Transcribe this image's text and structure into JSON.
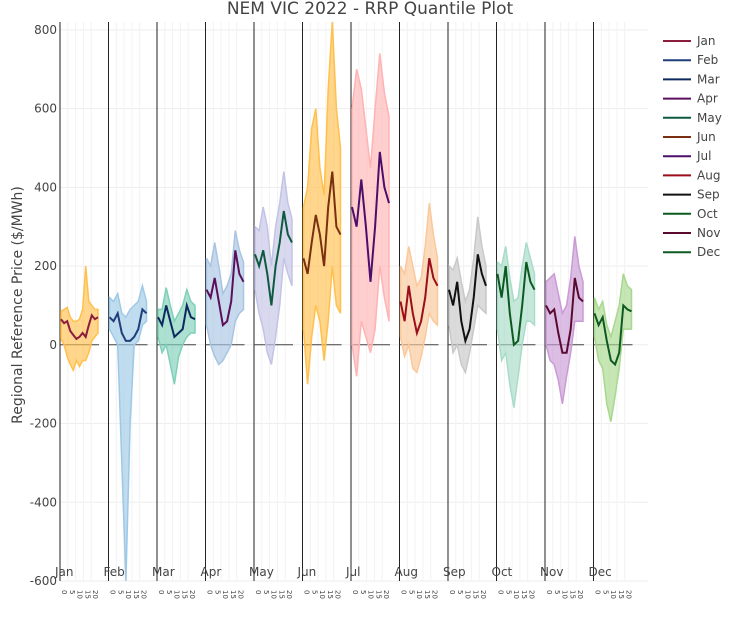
{
  "chart_data": {
    "type": "area",
    "title": "NEM VIC 2022 - RRP Quantile Plot",
    "ylabel": "Regional Reference Price ($/MWh)",
    "ylim": [
      -600,
      820
    ],
    "yticks": [
      -600,
      -400,
      -200,
      0,
      200,
      400,
      600,
      800
    ],
    "hour_ticks": [
      "0",
      "5",
      "10",
      "15",
      "20"
    ],
    "legend": {
      "placement": "right",
      "entries": [
        {
          "name": "Jan",
          "color": "#8c1c3c"
        },
        {
          "name": "Feb",
          "color": "#1f3f7a"
        },
        {
          "name": "Mar",
          "color": "#0d2a5e"
        },
        {
          "name": "Apr",
          "color": "#5b0f5b"
        },
        {
          "name": "May",
          "color": "#0d5a40"
        },
        {
          "name": "Jun",
          "color": "#7a3010"
        },
        {
          "name": "Jul",
          "color": "#4b0f6b"
        },
        {
          "name": "Aug",
          "color": "#9a0f1a"
        },
        {
          "name": "Sep",
          "color": "#111111"
        },
        {
          "name": "Oct",
          "color": "#0d5a20"
        },
        {
          "name": "Nov",
          "color": "#5a0a30"
        },
        {
          "name": "Dec",
          "color": "#0d5a20"
        }
      ]
    },
    "months": [
      {
        "label": "Jan",
        "band_color": "#ffc04d",
        "line_color": "#8c1c3c",
        "median": [
          65,
          55,
          60,
          35,
          25,
          15,
          20,
          30,
          20,
          50,
          75,
          65,
          70
        ],
        "lower": [
          15,
          0,
          -30,
          -50,
          -65,
          -40,
          -55,
          -40,
          -40,
          -20,
          10,
          20,
          30
        ],
        "upper": [
          85,
          90,
          95,
          70,
          60,
          60,
          65,
          90,
          200,
          110,
          100,
          90,
          90
        ]
      },
      {
        "label": "Feb",
        "band_color": "#9ec9e6",
        "line_color": "#1f3f7a",
        "median": [
          70,
          60,
          80,
          30,
          10,
          10,
          20,
          40,
          90,
          80
        ],
        "lower": [
          40,
          20,
          0,
          -300,
          -600,
          -200,
          0,
          10,
          50,
          60
        ],
        "upper": [
          120,
          110,
          130,
          80,
          70,
          90,
          100,
          110,
          150,
          110
        ]
      },
      {
        "label": "Mar",
        "band_color": "#7fd0b8",
        "line_color": "#0d2a5e",
        "median": [
          70,
          50,
          100,
          60,
          20,
          30,
          40,
          100,
          70,
          65
        ],
        "lower": [
          20,
          -20,
          0,
          -50,
          -100,
          -30,
          0,
          20,
          30,
          30
        ],
        "upper": [
          90,
          90,
          145,
          100,
          60,
          80,
          100,
          140,
          110,
          100
        ]
      },
      {
        "label": "Apr",
        "band_color": "#a9c4e2",
        "line_color": "#5b0f5b",
        "median": [
          140,
          120,
          170,
          110,
          50,
          60,
          110,
          240,
          180,
          160
        ],
        "lower": [
          50,
          0,
          -30,
          -50,
          -40,
          -20,
          0,
          60,
          80,
          90
        ],
        "upper": [
          220,
          200,
          260,
          200,
          130,
          150,
          180,
          290,
          240,
          210
        ]
      },
      {
        "label": "May",
        "band_color": "#c3c3e6",
        "line_color": "#0d5a40",
        "median": [
          230,
          200,
          240,
          180,
          100,
          200,
          260,
          340,
          280,
          260
        ],
        "lower": [
          140,
          80,
          40,
          -20,
          -50,
          20,
          100,
          220,
          180,
          150
        ],
        "upper": [
          300,
          290,
          350,
          300,
          200,
          300,
          360,
          440,
          360,
          320
        ]
      },
      {
        "label": "Jun",
        "band_color": "#ffc04d",
        "line_color": "#7a3010",
        "median": [
          220,
          180,
          260,
          330,
          280,
          200,
          350,
          440,
          300,
          280
        ],
        "lower": [
          40,
          -100,
          20,
          100,
          60,
          -40,
          60,
          200,
          100,
          80
        ],
        "upper": [
          350,
          400,
          550,
          600,
          450,
          380,
          650,
          820,
          600,
          500
        ]
      },
      {
        "label": "Jul",
        "band_color": "#ffb3b3",
        "line_color": "#4b0f6b",
        "median": [
          350,
          300,
          420,
          300,
          160,
          300,
          490,
          400,
          360
        ],
        "lower": [
          0,
          -80,
          60,
          20,
          -20,
          40,
          200,
          120,
          60
        ],
        "upper": [
          600,
          700,
          650,
          550,
          450,
          600,
          740,
          640,
          580
        ]
      },
      {
        "label": "Aug",
        "band_color": "#fbc89a",
        "line_color": "#9a0f1a",
        "median": [
          110,
          60,
          150,
          80,
          30,
          60,
          120,
          220,
          170,
          150
        ],
        "lower": [
          20,
          -30,
          0,
          -60,
          -70,
          -30,
          20,
          80,
          60,
          50
        ],
        "upper": [
          200,
          180,
          250,
          200,
          150,
          170,
          250,
          360,
          280,
          220
        ]
      },
      {
        "label": "Sep",
        "band_color": "#c8c8c8",
        "line_color": "#111111",
        "median": [
          140,
          100,
          160,
          60,
          10,
          40,
          120,
          230,
          180,
          150
        ],
        "lower": [
          50,
          -20,
          0,
          -50,
          -70,
          -20,
          40,
          100,
          90,
          80
        ],
        "upper": [
          200,
          190,
          220,
          160,
          110,
          140,
          220,
          325,
          250,
          200
        ]
      },
      {
        "label": "Oct",
        "band_color": "#a8dcc8",
        "line_color": "#0d5a20",
        "median": [
          180,
          120,
          200,
          80,
          0,
          10,
          100,
          210,
          160,
          140
        ],
        "lower": [
          40,
          -40,
          -20,
          -100,
          -160,
          -80,
          0,
          60,
          60,
          50
        ],
        "upper": [
          210,
          200,
          250,
          170,
          110,
          120,
          200,
          260,
          220,
          180
        ]
      },
      {
        "label": "Nov",
        "band_color": "#c99ad6",
        "line_color": "#5a0a30",
        "median": [
          100,
          80,
          90,
          30,
          -20,
          -20,
          40,
          170,
          120,
          110
        ],
        "lower": [
          0,
          -40,
          -50,
          -90,
          -150,
          -80,
          -20,
          60,
          60,
          60
        ],
        "upper": [
          160,
          170,
          180,
          130,
          80,
          100,
          170,
          275,
          200,
          160
        ]
      },
      {
        "label": "Dec",
        "band_color": "#a8d88e",
        "line_color": "#0d5a20",
        "median": [
          80,
          50,
          70,
          10,
          -40,
          -50,
          -20,
          100,
          90,
          85
        ],
        "lower": [
          20,
          -40,
          -60,
          -150,
          -195,
          -130,
          -60,
          40,
          40,
          40
        ],
        "upper": [
          120,
          90,
          110,
          50,
          20,
          60,
          100,
          180,
          150,
          140
        ]
      }
    ]
  }
}
